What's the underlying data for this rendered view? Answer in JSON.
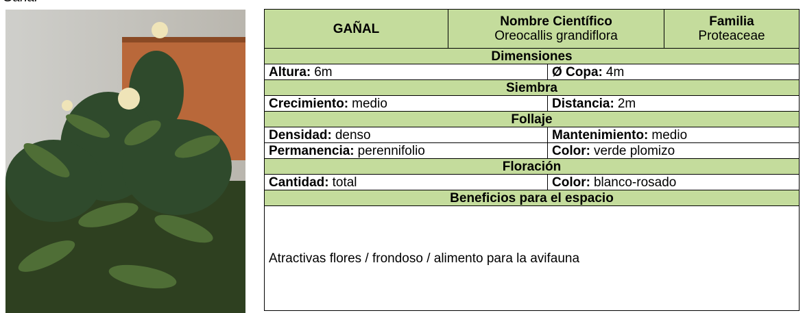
{
  "caption": "Gañal",
  "table": {
    "name": "GAÑAL",
    "scientific_name_label": "Nombre Científico",
    "scientific_name": "Oreocallis grandiflora",
    "family_label": "Familia",
    "family": "Proteaceae",
    "sections": [
      {
        "title": "Dimensiones",
        "rows": [
          [
            {
              "label": "Altura:",
              "value": "6m"
            },
            {
              "label": "Ø Copa:",
              "value": "4m"
            }
          ]
        ]
      },
      {
        "title": "Siembra",
        "rows": [
          [
            {
              "label": "Crecimiento:",
              "value": "medio"
            },
            {
              "label": "Distancia:",
              "value": "2m"
            }
          ]
        ]
      },
      {
        "title": "Follaje",
        "rows": [
          [
            {
              "label": "Densidad:",
              "value": "denso"
            },
            {
              "label": "Mantenimiento:",
              "value": "medio"
            }
          ],
          [
            {
              "label": "Permanencia:",
              "value": "perennifolio"
            },
            {
              "label": "Color:",
              "value": "verde plomizo"
            }
          ]
        ]
      },
      {
        "title": "Floración",
        "rows": [
          [
            {
              "label": "Cantidad:",
              "value": "total"
            },
            {
              "label": "Color:",
              "value": "blanco-rosado"
            }
          ]
        ]
      }
    ],
    "benefits_title": "Beneficios para el espacio",
    "benefits": "Atractivas flores / frondoso / alimento para la avifauna"
  }
}
